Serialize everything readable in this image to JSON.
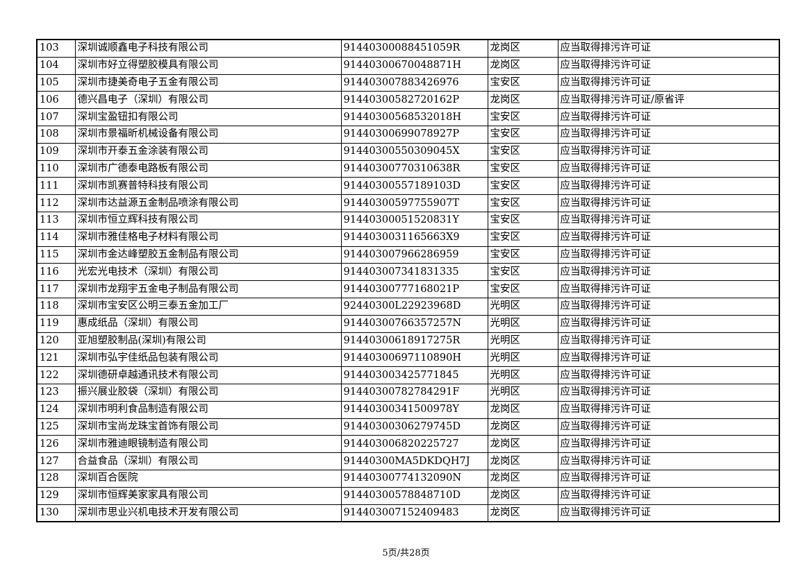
{
  "rows": [
    [
      "103",
      "深圳诚顺鑫电子科技有限公司",
      "91440300088451059R",
      "龙岗区",
      "应当取得排污许可证"
    ],
    [
      "104",
      "深圳市好立得塑胶模具有限公司",
      "91440300670048871H",
      "龙岗区",
      "应当取得排污许可证"
    ],
    [
      "105",
      "深圳市捷美奇电子五金有限公司",
      "914403007883426976",
      "宝安区",
      "应当取得排污许可证"
    ],
    [
      "106",
      "德兴昌电子（深圳）有限公司",
      "91440300582720162P",
      "龙岗区",
      "应当取得排污许可证/原省评"
    ],
    [
      "107",
      "深圳宝盈钮扣有限公司",
      "91440300568532018H",
      "宝安区",
      "应当取得排污许可证"
    ],
    [
      "108",
      "深圳市景福昕机械设备有限公司",
      "91440300699078927P",
      "宝安区",
      "应当取得排污许可证"
    ],
    [
      "109",
      "深圳市开泰五金涂装有限公司",
      "91440300550309045X",
      "宝安区",
      "应当取得排污许可证"
    ],
    [
      "110",
      "深圳市广德泰电路板有限公司",
      "91440300770310638R",
      "宝安区",
      "应当取得排污许可证"
    ],
    [
      "111",
      "深圳市凯赛普特科技有限公司",
      "91440300557189103D",
      "宝安区",
      "应当取得排污许可证"
    ],
    [
      "112",
      "深圳市达益源五金制品喷涂有限公司",
      "91440300597755907T",
      "宝安区",
      "应当取得排污许可证"
    ],
    [
      "113",
      "深圳市恒立辉科技有限公司",
      "91440300051520831Y",
      "宝安区",
      "应当取得排污许可证"
    ],
    [
      "114",
      "深圳市雅佳格电子材料有限公司",
      "9144030031165663X9",
      "宝安区",
      "应当取得排污许可证"
    ],
    [
      "115",
      "深圳市金达峰塑胶五金制品有限公司",
      "914403007966286959",
      "宝安区",
      "应当取得排污许可证"
    ],
    [
      "116",
      "光宏光电技术（深圳）有限公司",
      "914403007341831335",
      "宝安区",
      "应当取得排污许可证"
    ],
    [
      "117",
      "深圳市龙翔宇五金电子制品有限公司",
      "91440300777168021P",
      "宝安区",
      "应当取得排污许可证"
    ],
    [
      "118",
      "深圳市宝安区公明三泰五金加工厂",
      "92440300L22923968D",
      "光明区",
      "应当取得排污许可证"
    ],
    [
      "119",
      "惠成纸品（深圳）有限公司",
      "91440300766357257N",
      "光明区",
      "应当取得排污许可证"
    ],
    [
      "120",
      "亚旭塑胶制品(深圳)有限公司",
      "91440300618917275R",
      "光明区",
      "应当取得排污许可证"
    ],
    [
      "121",
      "深圳市弘宇佳纸品包装有限公司",
      "91440300697110890H",
      "光明区",
      "应当取得排污许可证"
    ],
    [
      "122",
      "深圳德研卓越通讯技术有限公司",
      "914403003425771845",
      "光明区",
      "应当取得排污许可证"
    ],
    [
      "123",
      "振兴展业胶袋（深圳）有限公司",
      "91440300782784291F",
      "光明区",
      "应当取得排污许可证"
    ],
    [
      "124",
      "深圳市明利食品制造有限公司",
      "91440300341500978Y",
      "龙岗区",
      "应当取得排污许可证"
    ],
    [
      "125",
      "深圳市宝尚龙珠宝首饰有限公司",
      "91440300306279745D",
      "龙岗区",
      "应当取得排污许可证"
    ],
    [
      "126",
      "深圳市雅迪眼镜制造有限公司",
      "914403006820225727",
      "龙岗区",
      "应当取得排污许可证"
    ],
    [
      "127",
      "合益食品（深圳）有限公司",
      "91440300MA5DKDQH7J",
      "龙岗区",
      "应当取得排污许可证"
    ],
    [
      "128",
      "深圳百合医院",
      "91440300774132090N",
      "龙岗区",
      "应当取得排污许可证"
    ],
    [
      "129",
      "深圳市恒辉美家家具有限公司",
      "91440300578848710D",
      "龙岗区",
      "应当取得排污许可证"
    ],
    [
      "130",
      "深圳市思业兴机电技术开发有限公司",
      "914403007152409483",
      "龙岗区",
      "应当取得排污许可证"
    ]
  ],
  "footer": {
    "page_label": "5页/共28页"
  }
}
